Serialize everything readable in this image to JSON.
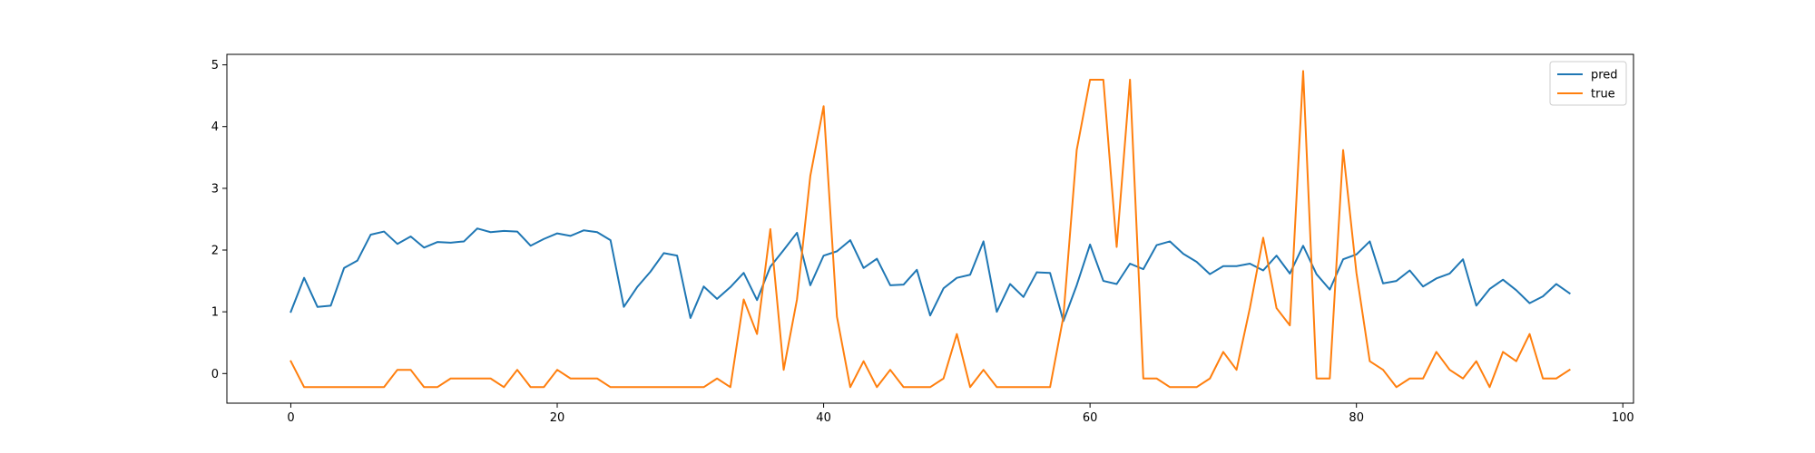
{
  "chart_data": {
    "type": "line",
    "title": "",
    "xlabel": "",
    "ylabel": "",
    "xlim": [
      -4.8,
      100.8
    ],
    "ylim": [
      -0.48,
      5.17
    ],
    "xticks": [
      0,
      20,
      40,
      60,
      80,
      100
    ],
    "yticks": [
      0,
      1,
      2,
      3,
      4,
      5
    ],
    "grid": false,
    "legend": "top-right",
    "series": [
      {
        "name": "pred",
        "color": "#1f77b4",
        "values": [
          1.0,
          1.55,
          1.08,
          1.1,
          1.71,
          1.83,
          2.25,
          2.3,
          2.1,
          2.22,
          2.04,
          2.13,
          2.12,
          2.14,
          2.35,
          2.29,
          2.31,
          2.3,
          2.07,
          2.18,
          2.27,
          2.23,
          2.32,
          2.29,
          2.16,
          1.08,
          1.4,
          1.65,
          1.95,
          1.91,
          0.9,
          1.41,
          1.21,
          1.4,
          1.63,
          1.19,
          1.73,
          2.0,
          2.28,
          1.43,
          1.91,
          1.98,
          2.16,
          1.71,
          1.86,
          1.43,
          1.44,
          1.68,
          0.94,
          1.38,
          1.55,
          1.6,
          2.14,
          1.0,
          1.45,
          1.24,
          1.64,
          1.63,
          0.85,
          1.43,
          2.09,
          1.5,
          1.45,
          1.78,
          1.69,
          2.08,
          2.14,
          1.94,
          1.81,
          1.61,
          1.74,
          1.74,
          1.78,
          1.67,
          1.91,
          1.62,
          2.07,
          1.61,
          1.36,
          1.85,
          1.93,
          2.14,
          1.46,
          1.5,
          1.67,
          1.41,
          1.54,
          1.62,
          1.85,
          1.1,
          1.37,
          1.52,
          1.35,
          1.14,
          1.25,
          1.45,
          1.3
        ]
      },
      {
        "name": "true",
        "color": "#ff7f0e",
        "values": [
          0.2,
          -0.22,
          -0.22,
          -0.22,
          -0.22,
          -0.22,
          -0.22,
          -0.22,
          0.06,
          0.06,
          -0.22,
          -0.22,
          -0.08,
          -0.08,
          -0.08,
          -0.08,
          -0.22,
          0.06,
          -0.22,
          -0.22,
          0.06,
          -0.08,
          -0.08,
          -0.08,
          -0.22,
          -0.22,
          -0.22,
          -0.22,
          -0.22,
          -0.22,
          -0.22,
          -0.22,
          -0.08,
          -0.22,
          1.2,
          0.64,
          2.34,
          0.06,
          1.2,
          3.2,
          4.33,
          0.92,
          -0.22,
          0.2,
          -0.22,
          0.06,
          -0.22,
          -0.22,
          -0.22,
          -0.08,
          0.64,
          -0.22,
          0.06,
          -0.22,
          -0.22,
          -0.22,
          -0.22,
          -0.22,
          0.92,
          3.62,
          4.76,
          4.76,
          2.05,
          4.76,
          -0.08,
          -0.08,
          -0.22,
          -0.22,
          -0.22,
          -0.08,
          0.35,
          0.06,
          1.06,
          2.2,
          1.06,
          0.78,
          4.9,
          -0.08,
          -0.08,
          3.62,
          1.63,
          0.2,
          0.06,
          -0.22,
          -0.08,
          -0.08,
          0.35,
          0.06,
          -0.08,
          0.2,
          -0.22,
          0.35,
          0.2,
          0.64,
          -0.08,
          -0.08,
          0.06
        ]
      }
    ]
  }
}
